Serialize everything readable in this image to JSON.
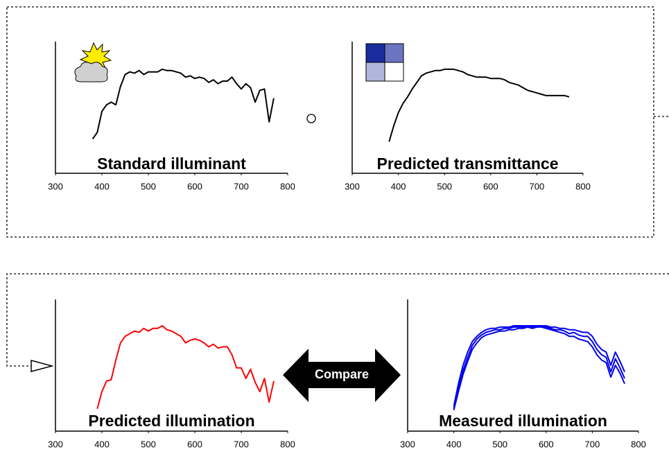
{
  "chart_data": [
    {
      "type": "line",
      "title": "Standard illuminant",
      "color": "#000000",
      "x": [
        380,
        390,
        400,
        410,
        420,
        430,
        440,
        450,
        460,
        470,
        480,
        490,
        500,
        510,
        520,
        530,
        540,
        550,
        560,
        570,
        580,
        590,
        600,
        610,
        620,
        630,
        640,
        650,
        660,
        670,
        680,
        690,
        700,
        710,
        720,
        730,
        740,
        750,
        760,
        770
      ],
      "values": [
        26,
        31,
        47,
        52,
        54,
        52,
        66,
        75,
        77,
        76,
        78,
        75,
        77,
        77,
        77,
        79,
        78,
        78,
        77,
        76,
        73,
        74,
        72,
        73,
        72,
        69,
        71,
        68,
        70,
        70,
        73,
        68,
        64,
        68,
        65,
        54,
        63,
        64,
        39,
        57
      ],
      "xlim": [
        300,
        800
      ],
      "xticks": [
        300,
        400,
        500,
        600,
        700,
        800
      ],
      "ylim": [
        0,
        100
      ]
    },
    {
      "type": "line",
      "title": "Predicted transmittance",
      "color": "#000000",
      "x": [
        380,
        390,
        400,
        410,
        420,
        430,
        440,
        450,
        460,
        470,
        480,
        490,
        500,
        510,
        520,
        530,
        540,
        550,
        560,
        570,
        580,
        590,
        600,
        610,
        620,
        630,
        640,
        650,
        660,
        670,
        680,
        690,
        700,
        710,
        720,
        730,
        740,
        750,
        760,
        770
      ],
      "values": [
        24,
        36,
        46,
        53,
        58,
        64,
        69,
        74,
        76,
        77,
        78,
        78,
        79,
        79,
        79,
        78,
        77,
        75,
        74,
        73,
        73,
        73,
        72,
        72,
        72,
        71,
        69,
        68,
        67,
        65,
        63,
        62,
        61,
        60,
        59,
        59,
        59,
        59,
        59,
        58
      ],
      "xlim": [
        300,
        800
      ],
      "xticks": [
        300,
        400,
        500,
        600,
        700,
        800
      ],
      "ylim": [
        0,
        100
      ]
    },
    {
      "type": "line",
      "title": "Predicted illumination",
      "color": "#ff0000",
      "x": [
        390,
        400,
        410,
        420,
        430,
        440,
        450,
        460,
        470,
        480,
        490,
        500,
        510,
        520,
        530,
        540,
        550,
        560,
        570,
        580,
        590,
        600,
        610,
        620,
        630,
        640,
        650,
        660,
        670,
        680,
        690,
        700,
        710,
        720,
        730,
        740,
        750,
        760,
        770
      ],
      "values": [
        17,
        30,
        38,
        39,
        54,
        67,
        72,
        74,
        76,
        75,
        78,
        76,
        78,
        78,
        80,
        77,
        76,
        74,
        72,
        67,
        69,
        70,
        69,
        67,
        64,
        66,
        63,
        64,
        64,
        58,
        48,
        48,
        40,
        47,
        37,
        30,
        40,
        22,
        38
      ],
      "xlim": [
        300,
        800
      ],
      "xticks": [
        300,
        400,
        500,
        600,
        700,
        800
      ],
      "ylim": [
        0,
        100
      ]
    },
    {
      "type": "line",
      "title": "Measured illumination",
      "x": [
        400,
        410,
        420,
        430,
        440,
        450,
        460,
        470,
        480,
        490,
        500,
        510,
        520,
        530,
        540,
        550,
        560,
        570,
        580,
        590,
        600,
        610,
        620,
        630,
        640,
        650,
        660,
        670,
        680,
        690,
        700,
        710,
        720,
        730,
        740,
        750,
        760,
        770
      ],
      "series": [
        {
          "color": "#0000ee",
          "values": [
            17,
            33,
            46,
            56,
            65,
            70,
            73,
            75,
            76,
            77,
            77,
            78,
            78,
            79,
            79,
            79,
            80,
            79,
            80,
            80,
            79,
            78,
            77,
            77,
            76,
            74,
            75,
            73,
            72,
            72,
            68,
            62,
            58,
            56,
            45,
            55,
            48,
            40
          ]
        },
        {
          "color": "#0000ee",
          "values": [
            19,
            36,
            50,
            60,
            68,
            72,
            75,
            77,
            78,
            78,
            79,
            79,
            79,
            80,
            80,
            80,
            80,
            80,
            80,
            80,
            80,
            79,
            79,
            78,
            78,
            77,
            77,
            76,
            75,
            75,
            72,
            66,
            62,
            60,
            50,
            60,
            53,
            45
          ]
        },
        {
          "color": "#0000ee",
          "values": [
            16,
            30,
            43,
            53,
            62,
            67,
            71,
            73,
            74,
            75,
            76,
            76,
            77,
            77,
            78,
            78,
            79,
            78,
            79,
            79,
            78,
            77,
            76,
            75,
            74,
            72,
            72,
            70,
            69,
            68,
            64,
            58,
            54,
            52,
            41,
            50,
            44,
            36
          ]
        }
      ],
      "xlim": [
        300,
        800
      ],
      "xticks": [
        300,
        400,
        500,
        600,
        700,
        800
      ],
      "ylim": [
        0,
        100
      ]
    }
  ],
  "compare_label": "Compare"
}
